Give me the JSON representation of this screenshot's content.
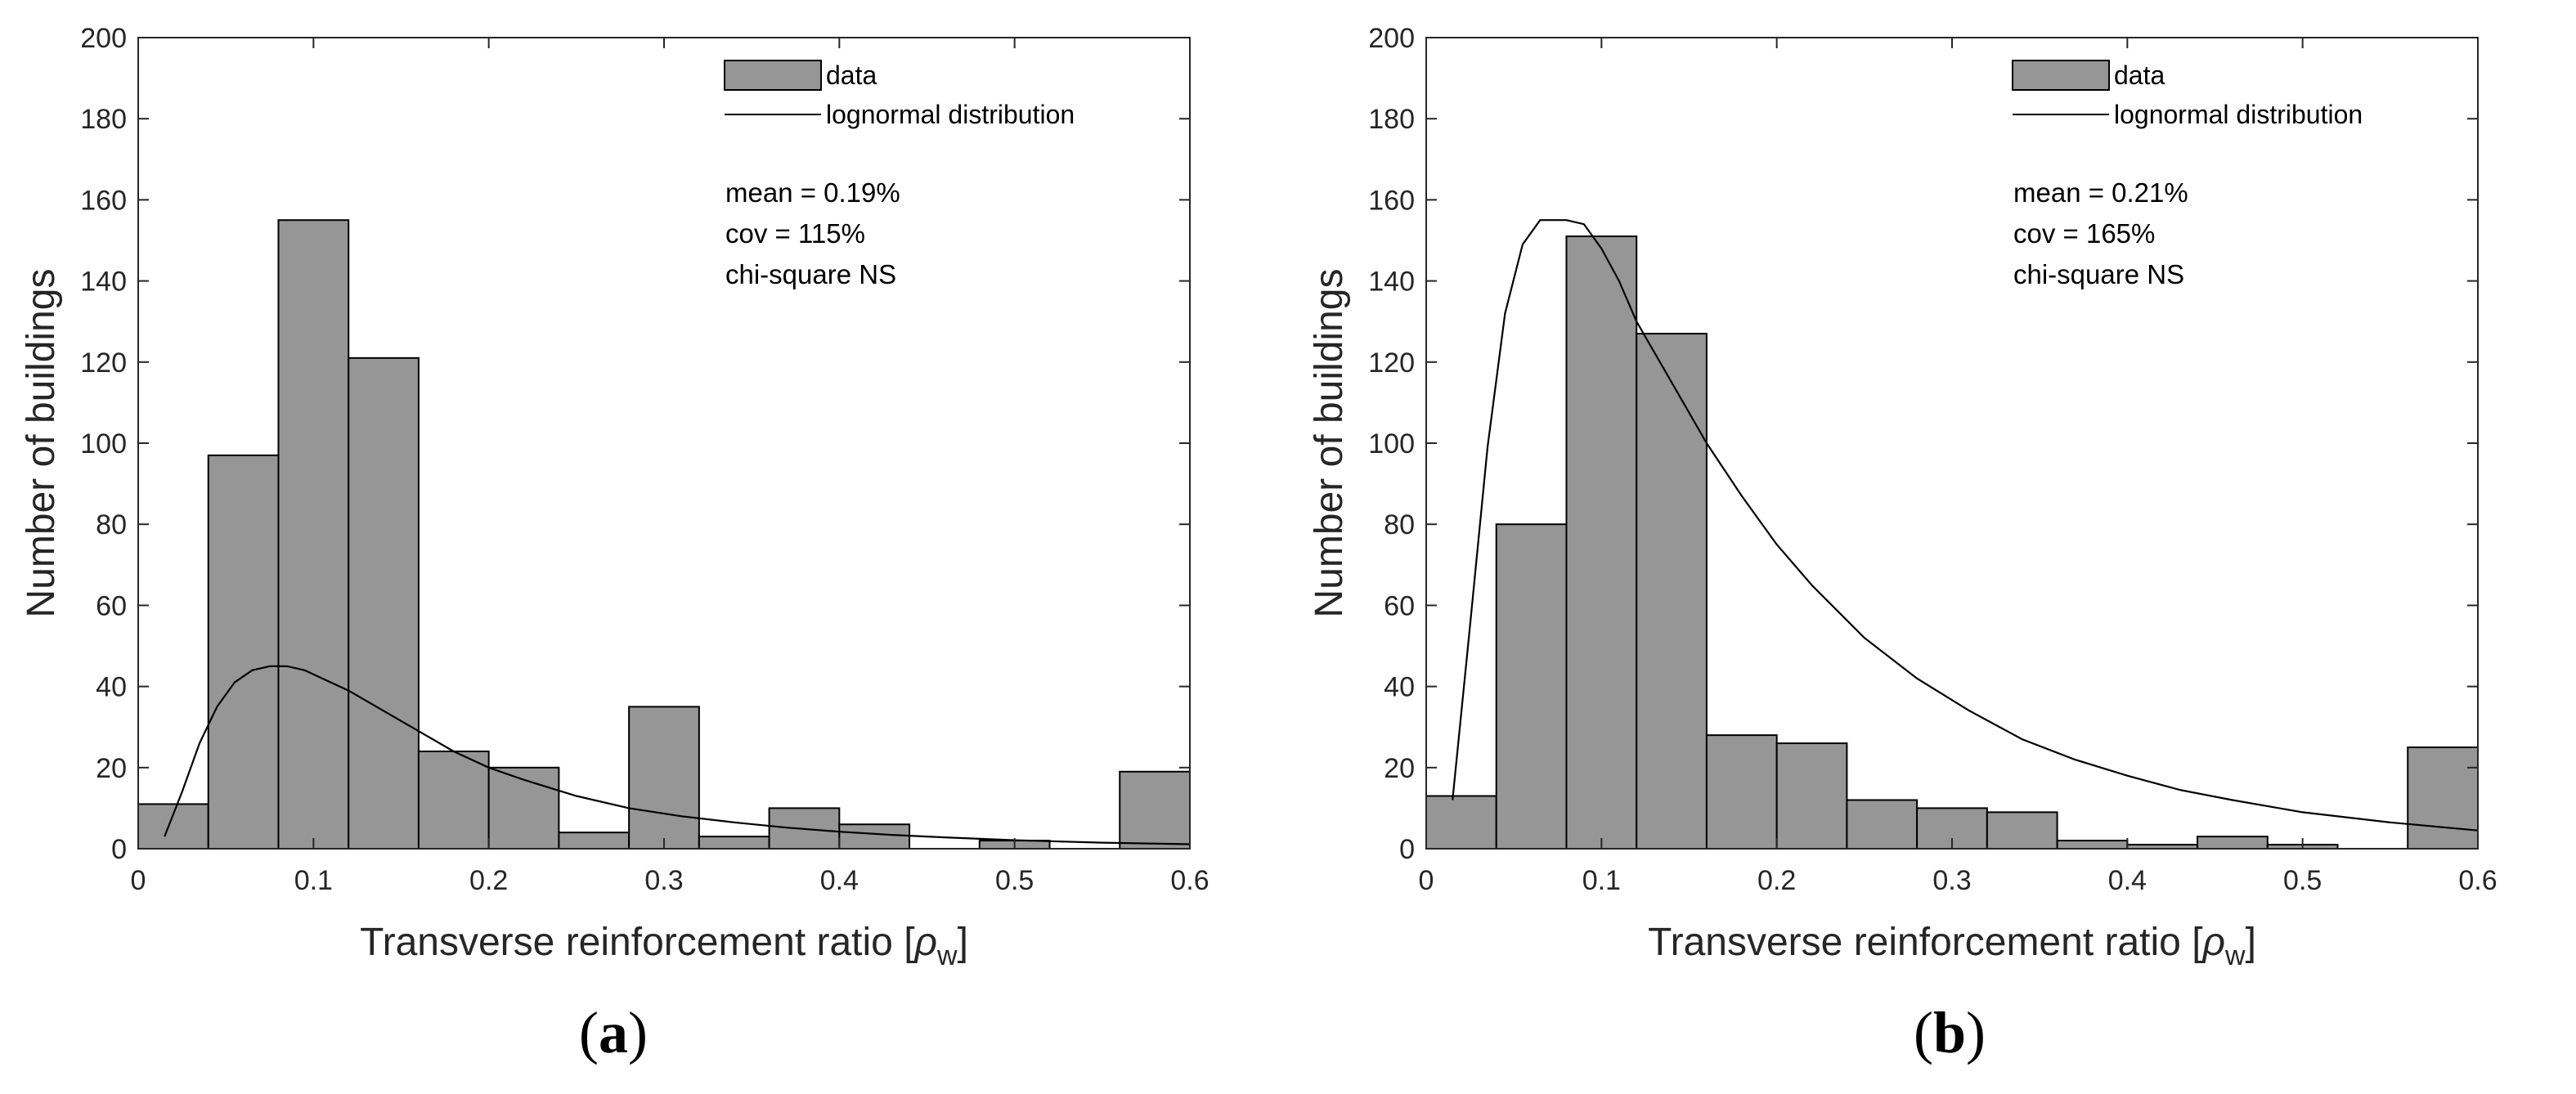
{
  "chart_data": [
    {
      "type": "bar",
      "panel": "(a)",
      "panel_letter": "a",
      "xlabel": "Transverse reinforcement ratio [ρw]",
      "xlabel_main": "Transverse reinforcement ratio [",
      "xlabel_symbol": "ρ",
      "xlabel_sub": "w",
      "xlabel_close": "]",
      "ylabel": "Number of buildings",
      "xlim": [
        0,
        0.6
      ],
      "ylim": [
        0,
        200
      ],
      "xticks": [
        0,
        0.1,
        0.2,
        0.3,
        0.4,
        0.5,
        0.6
      ],
      "xtick_labels": [
        "0",
        "0.1",
        "0.2",
        "0.3",
        "0.4",
        "0.5",
        "0.6"
      ],
      "yticks": [
        0,
        20,
        40,
        60,
        80,
        100,
        120,
        140,
        160,
        180,
        200
      ],
      "ytick_labels": [
        "0",
        "20",
        "40",
        "60",
        "80",
        "100",
        "120",
        "140",
        "160",
        "180",
        "200"
      ],
      "grid": false,
      "legend_placement": "top-right",
      "series": [
        {
          "name": "data",
          "kind": "histogram",
          "color": "#969696",
          "bin_edges": [
            0,
            0.04,
            0.08,
            0.12,
            0.16,
            0.2,
            0.24,
            0.28,
            0.32,
            0.36,
            0.4,
            0.44,
            0.48,
            0.52,
            0.56,
            0.6
          ],
          "values": [
            11,
            97,
            155,
            121,
            24,
            20,
            4,
            35,
            3,
            10,
            6,
            0,
            2,
            0,
            19
          ]
        },
        {
          "name": "lognormal distribution",
          "kind": "line",
          "color": "#000000",
          "x": [
            0.015,
            0.025,
            0.035,
            0.045,
            0.055,
            0.065,
            0.075,
            0.085,
            0.095,
            0.105,
            0.12,
            0.14,
            0.16,
            0.18,
            0.2,
            0.22,
            0.25,
            0.28,
            0.31,
            0.34,
            0.37,
            0.4,
            0.43,
            0.46,
            0.5,
            0.55,
            0.6
          ],
          "y": [
            3,
            14,
            26,
            35,
            41,
            44,
            45,
            45,
            44,
            42,
            39,
            34,
            29,
            24,
            20,
            17,
            13,
            10,
            8,
            6.5,
            5.2,
            4.2,
            3.4,
            2.8,
            2.1,
            1.5,
            1.1
          ]
        }
      ],
      "annotations": [
        "mean = 0.19%",
        "cov = 115%",
        "chi-square NS"
      ]
    },
    {
      "type": "bar",
      "panel": "(b)",
      "panel_letter": "b",
      "xlabel": "Transverse reinforcement ratio [ρw]",
      "xlabel_main": "Transverse reinforcement ratio [",
      "xlabel_symbol": "ρ",
      "xlabel_sub": "w",
      "xlabel_close": "]",
      "ylabel": "Number of buildings",
      "xlim": [
        0,
        0.6
      ],
      "ylim": [
        0,
        200
      ],
      "xticks": [
        0,
        0.1,
        0.2,
        0.3,
        0.4,
        0.5,
        0.6
      ],
      "xtick_labels": [
        "0",
        "0.1",
        "0.2",
        "0.3",
        "0.4",
        "0.5",
        "0.6"
      ],
      "yticks": [
        0,
        20,
        40,
        60,
        80,
        100,
        120,
        140,
        160,
        180,
        200
      ],
      "ytick_labels": [
        "0",
        "20",
        "40",
        "60",
        "80",
        "100",
        "120",
        "140",
        "160",
        "180",
        "200"
      ],
      "grid": false,
      "legend_placement": "top-right",
      "series": [
        {
          "name": "data",
          "kind": "histogram",
          "color": "#969696",
          "bin_edges": [
            0,
            0.04,
            0.08,
            0.12,
            0.16,
            0.2,
            0.24,
            0.28,
            0.32,
            0.36,
            0.4,
            0.44,
            0.48,
            0.52,
            0.56,
            0.6
          ],
          "values": [
            13,
            80,
            151,
            127,
            28,
            26,
            12,
            10,
            9,
            2,
            1,
            3,
            1,
            0,
            25
          ]
        },
        {
          "name": "lognormal distribution",
          "kind": "line",
          "color": "#000000",
          "x": [
            0.015,
            0.025,
            0.035,
            0.045,
            0.055,
            0.065,
            0.075,
            0.08,
            0.09,
            0.1,
            0.11,
            0.12,
            0.14,
            0.16,
            0.18,
            0.2,
            0.22,
            0.25,
            0.28,
            0.31,
            0.34,
            0.37,
            0.4,
            0.43,
            0.46,
            0.5,
            0.55,
            0.6
          ],
          "y": [
            12,
            55,
            99,
            132,
            149,
            155,
            155,
            155,
            154,
            148,
            140,
            130,
            115,
            100,
            87,
            75,
            65,
            52,
            42,
            34,
            27,
            22,
            18,
            14.5,
            12,
            9,
            6.5,
            4.5
          ]
        }
      ],
      "annotations": [
        "mean = 0.21%",
        "cov = 165%",
        "chi-square NS"
      ]
    }
  ]
}
